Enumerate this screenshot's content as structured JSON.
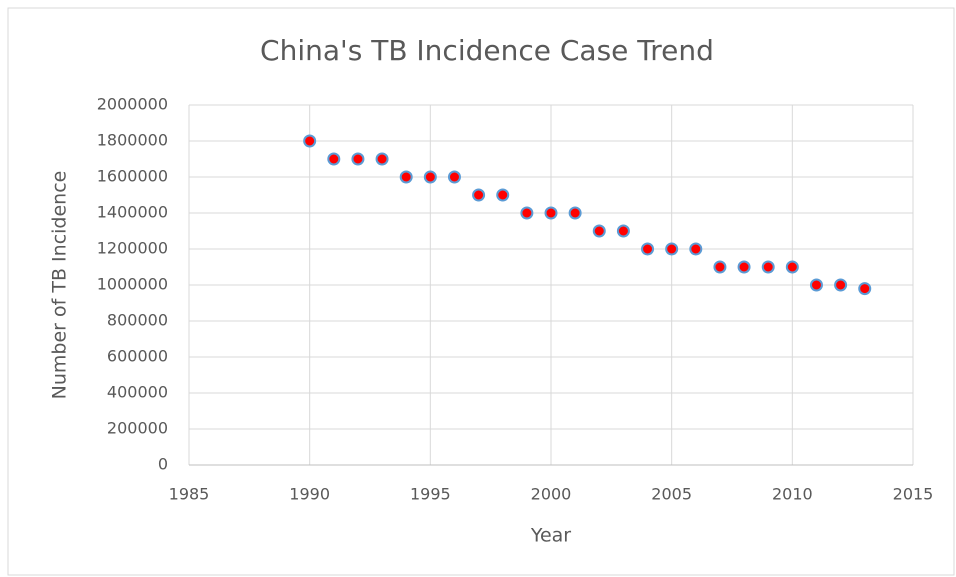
{
  "chart_data": {
    "type": "scatter",
    "title": "China's TB Incidence Case Trend",
    "x_label": "Year",
    "y_label": "Number of TB Incidence",
    "x": [
      1990,
      1991,
      1992,
      1993,
      1994,
      1995,
      1996,
      1997,
      1998,
      1999,
      2000,
      2001,
      2002,
      2003,
      2004,
      2005,
      2006,
      2007,
      2008,
      2009,
      2010,
      2011,
      2012,
      2013
    ],
    "values": [
      1800000,
      1700000,
      1700000,
      1700000,
      1600000,
      1600000,
      1600000,
      1500000,
      1500000,
      1400000,
      1400000,
      1400000,
      1300000,
      1300000,
      1200000,
      1200000,
      1200000,
      1100000,
      1100000,
      1100000,
      1100000,
      1000000,
      1000000,
      980000
    ],
    "color": "#ff0000",
    "edge_color": "#5b9bd5",
    "xlim": [
      1985,
      2015
    ],
    "xticks": [
      1985,
      1990,
      1995,
      2000,
      2005,
      2010,
      2015
    ],
    "ylim": [
      0,
      2000000
    ],
    "yticks": [
      0,
      200000,
      400000,
      600000,
      800000,
      1000000,
      1200000,
      1400000,
      1600000,
      1800000,
      2000000
    ],
    "grid": true
  }
}
